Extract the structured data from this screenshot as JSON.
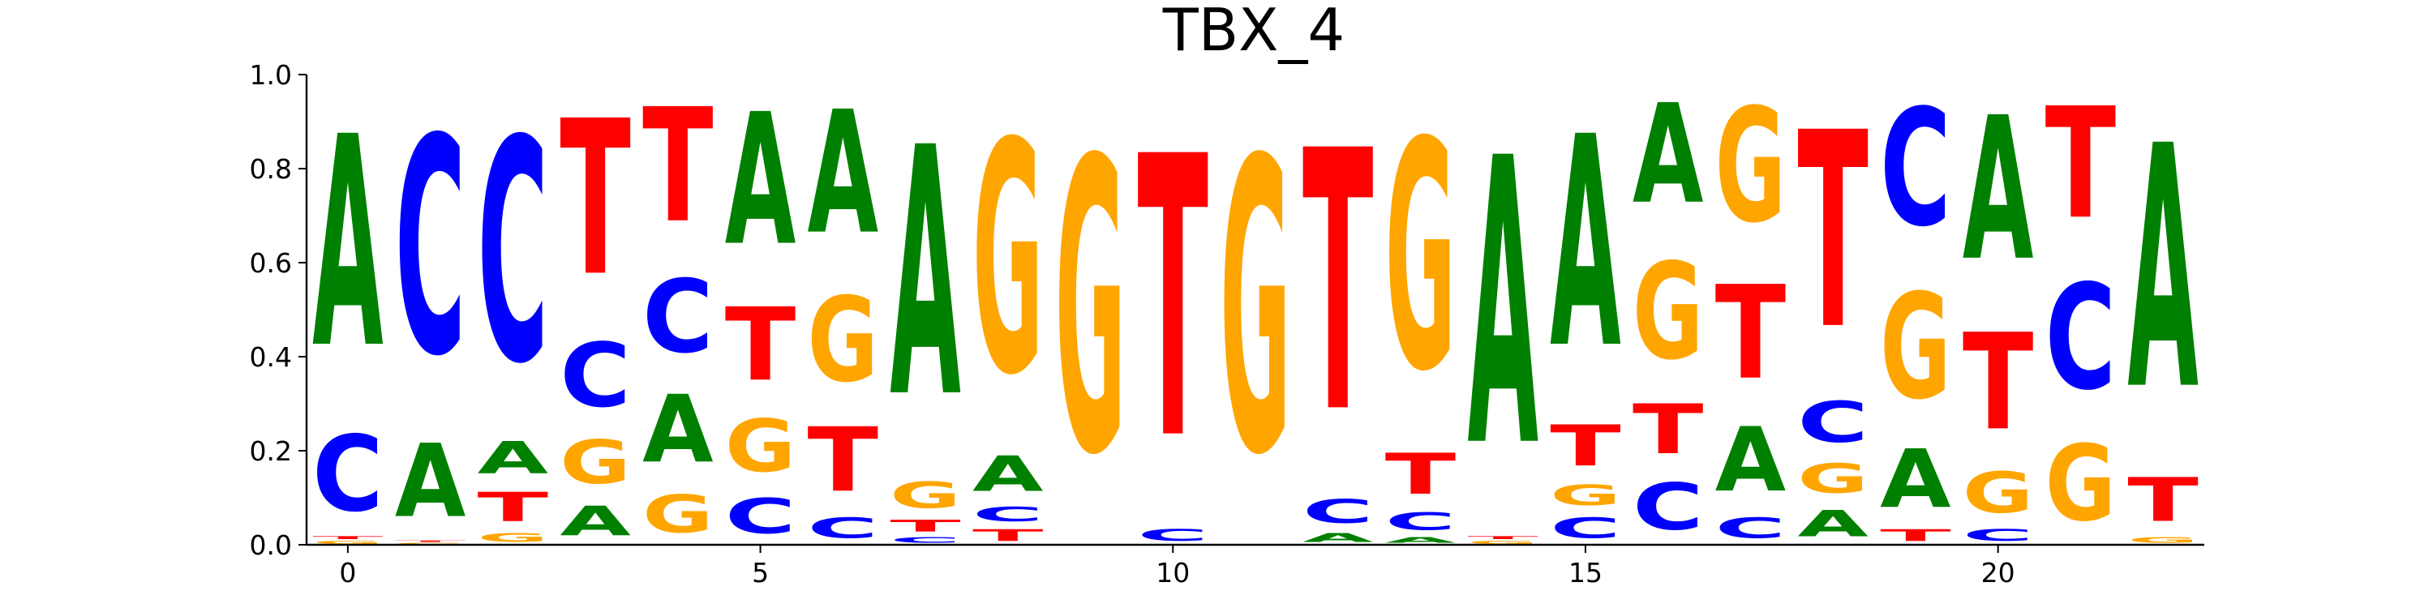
{
  "chart_data": {
    "type": "sequence-logo",
    "title": "TBX_4",
    "xlabel": "",
    "ylabel": "",
    "xlim": [
      -0.5,
      22.5
    ],
    "ylim": [
      0,
      1
    ],
    "x_ticks": [
      0,
      5,
      10,
      15,
      20
    ],
    "x_tick_labels": [
      "0",
      "5",
      "10",
      "15",
      "20"
    ],
    "y_ticks": [
      0,
      0.2,
      0.4,
      0.6,
      0.8,
      1.0
    ],
    "y_tick_labels": [
      "0.0",
      "0.2",
      "0.4",
      "0.6",
      "0.8",
      "1.0"
    ],
    "grid": false,
    "colors": {
      "A": "#008000",
      "C": "#0000ff",
      "G": "#ffa500",
      "T": "#ff0000"
    },
    "positions": [
      {
        "pos": 0,
        "A": 0.72,
        "C": 0.26,
        "G": 0.01,
        "T": 0.01
      },
      {
        "pos": 1,
        "A": 0.25,
        "C": 0.74,
        "G": 0.005,
        "T": 0.005
      },
      {
        "pos": 2,
        "A": 0.11,
        "C": 0.76,
        "G": 0.03,
        "T": 0.1
      },
      {
        "pos": 3,
        "A": 0.1,
        "C": 0.22,
        "G": 0.15,
        "T": 0.53
      },
      {
        "pos": 4,
        "A": 0.23,
        "C": 0.25,
        "G": 0.13,
        "T": 0.39
      },
      {
        "pos": 5,
        "A": 0.45,
        "C": 0.12,
        "G": 0.18,
        "T": 0.25
      },
      {
        "pos": 6,
        "A": 0.42,
        "C": 0.07,
        "G": 0.29,
        "T": 0.22
      },
      {
        "pos": 7,
        "A": 0.85,
        "C": 0.02,
        "G": 0.09,
        "T": 0.04
      },
      {
        "pos": 8,
        "A": 0.12,
        "C": 0.05,
        "G": 0.79,
        "T": 0.04
      },
      {
        "pos": 9,
        "A": 0.0,
        "C": 0.0,
        "G": 1.0,
        "T": 0.0
      },
      {
        "pos": 10,
        "A": 0.0,
        "C": 0.04,
        "G": 0.0,
        "T": 0.96
      },
      {
        "pos": 11,
        "A": 0.0,
        "C": 0.0,
        "G": 1.0,
        "T": 0.0
      },
      {
        "pos": 12,
        "A": 0.03,
        "C": 0.08,
        "G": 0.0,
        "T": 0.89
      },
      {
        "pos": 13,
        "A": 0.02,
        "C": 0.06,
        "G": 0.78,
        "T": 0.14
      },
      {
        "pos": 14,
        "A": 0.98,
        "C": 0.0,
        "G": 0.01,
        "T": 0.01
      },
      {
        "pos": 15,
        "A": 0.72,
        "C": 0.07,
        "G": 0.07,
        "T": 0.14
      },
      {
        "pos": 16,
        "A": 0.34,
        "C": 0.16,
        "G": 0.33,
        "T": 0.17
      },
      {
        "pos": 17,
        "A": 0.22,
        "C": 0.07,
        "G": 0.39,
        "T": 0.32
      },
      {
        "pos": 18,
        "A": 0.09,
        "C": 0.14,
        "G": 0.1,
        "T": 0.67
      },
      {
        "pos": 19,
        "A": 0.2,
        "C": 0.4,
        "G": 0.36,
        "T": 0.04
      },
      {
        "pos": 20,
        "A": 0.49,
        "C": 0.04,
        "G": 0.14,
        "T": 0.33
      },
      {
        "pos": 21,
        "A": 0.0,
        "C": 0.36,
        "G": 0.26,
        "T": 0.38
      },
      {
        "pos": 22,
        "A": 0.83,
        "C": 0.0,
        "G": 0.02,
        "T": 0.15
      }
    ]
  }
}
